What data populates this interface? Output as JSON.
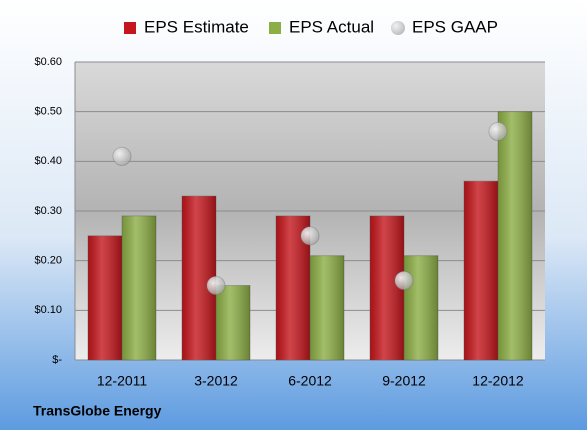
{
  "chart_data": {
    "type": "bar",
    "categories": [
      "12-2011",
      "3-2012",
      "6-2012",
      "9-2012",
      "12-2012"
    ],
    "series": [
      {
        "name": "EPS Estimate",
        "type": "bar",
        "color": "#c4161c",
        "values": [
          0.25,
          0.33,
          0.29,
          0.29,
          0.36
        ]
      },
      {
        "name": "EPS Actual",
        "type": "bar",
        "color": "#8cae45",
        "values": [
          0.29,
          0.15,
          0.21,
          0.21,
          0.5
        ]
      },
      {
        "name": "EPS GAAP",
        "type": "scatter",
        "color": "#a6a6a6",
        "values": [
          0.41,
          0.15,
          0.25,
          0.16,
          0.46
        ]
      }
    ],
    "ylim": [
      0,
      0.6
    ],
    "yticks": [
      {
        "value": 0,
        "label": "$-"
      },
      {
        "value": 0.1,
        "label": "$0.10"
      },
      {
        "value": 0.2,
        "label": "$0.20"
      },
      {
        "value": 0.3,
        "label": "$0.30"
      },
      {
        "value": 0.4,
        "label": "$0.40"
      },
      {
        "value": 0.5,
        "label": "$0.50"
      },
      {
        "value": 0.6,
        "label": "$0.60"
      }
    ],
    "grid": true,
    "legend": "top",
    "footer": "TransGlobe Energy"
  }
}
